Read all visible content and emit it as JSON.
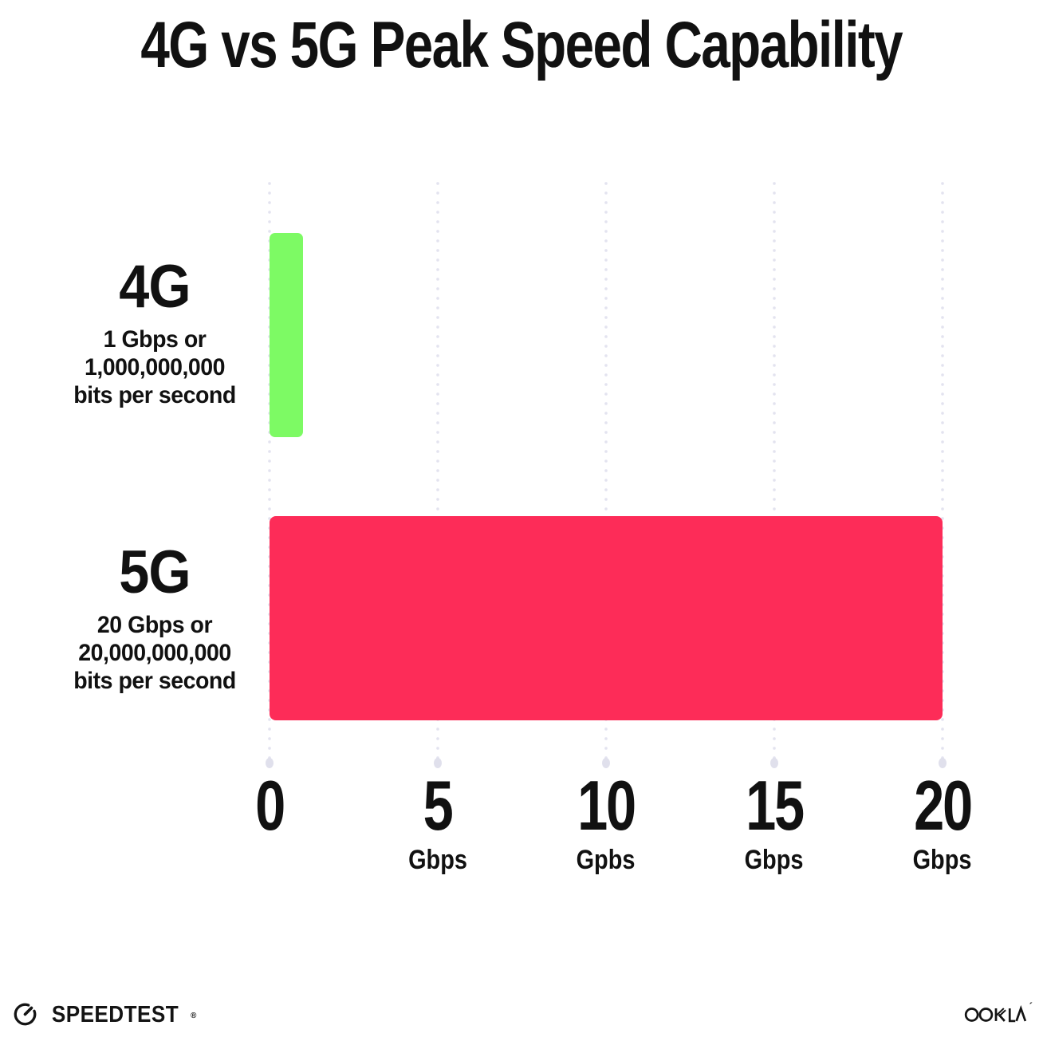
{
  "title": "4G vs 5G Peak Speed Capability",
  "chart_data": {
    "type": "bar",
    "orientation": "horizontal",
    "title": "4G vs 5G Peak Speed Capability",
    "categories": [
      "4G",
      "5G"
    ],
    "category_sublabels": [
      [
        "1 Gbps or",
        "1,000,000,000",
        "bits per second"
      ],
      [
        "20 Gbps or",
        "20,000,000,000",
        "bits per second"
      ]
    ],
    "values": [
      1,
      20
    ],
    "xlim": [
      0,
      20
    ],
    "x_ticks": [
      {
        "value": 0,
        "label": "0",
        "unit": ""
      },
      {
        "value": 5,
        "label": "5",
        "unit": "Gbps"
      },
      {
        "value": 10,
        "label": "10",
        "unit": "Gpbs"
      },
      {
        "value": 15,
        "label": "15",
        "unit": "Gbps"
      },
      {
        "value": 20,
        "label": "20",
        "unit": "Gbps"
      }
    ],
    "bar_colors": [
      "#7DFA64",
      "#FD2C58"
    ],
    "grid": "dotted-vertical",
    "legend": "none"
  },
  "footer": {
    "speedtest_label": "SPEEDTEST",
    "speedtest_mark": "®",
    "ookla_label": "OOKLA",
    "ookla_mark": "´"
  },
  "colors": {
    "background": "#FFFFFF",
    "text": "#111111",
    "grid_dot": "#E3E3EF",
    "bar_4g": "#7DFA64",
    "bar_5g": "#FD2C58"
  }
}
